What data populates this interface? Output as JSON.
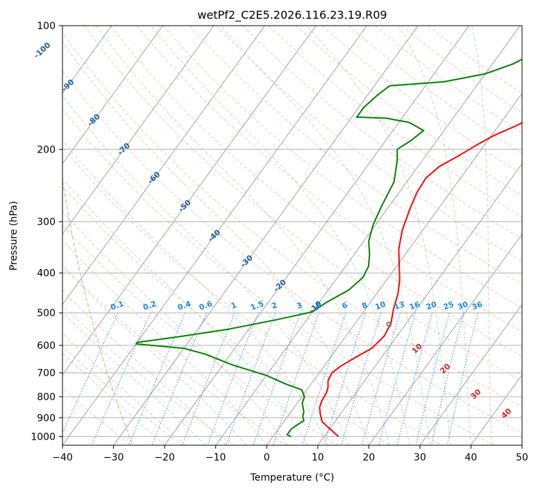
{
  "chart_data": {
    "type": "line",
    "title": "wetPf2_C2E5.2026.116.23.19.R09",
    "xlabel": "Temperature (°C)",
    "ylabel": "Pressure (hPa)",
    "xlim": [
      -40,
      50
    ],
    "ylim": [
      1050,
      100
    ],
    "y_scale": "log",
    "x_ticks": [
      -40,
      -30,
      -20,
      -10,
      0,
      10,
      20,
      30,
      40,
      50
    ],
    "x_tick_labels": [
      "−40",
      "−30",
      "−20",
      "−10",
      "0",
      "10",
      "20",
      "30",
      "40",
      "50"
    ],
    "y_ticks": [
      100,
      200,
      300,
      400,
      500,
      600,
      700,
      800,
      900,
      1000
    ],
    "y_tick_labels": [
      "100",
      "200",
      "300",
      "400",
      "500",
      "600",
      "700",
      "800",
      "900",
      "1000"
    ],
    "grid": true,
    "isotherm_labels": [
      {
        "value": -100,
        "label": "-100",
        "p": 115
      },
      {
        "value": -90,
        "label": "-90",
        "p": 140
      },
      {
        "value": -80,
        "label": "-80",
        "p": 170
      },
      {
        "value": -70,
        "label": "-70",
        "p": 200
      },
      {
        "value": -60,
        "label": "-60",
        "p": 235
      },
      {
        "value": -50,
        "label": "-50",
        "p": 275
      },
      {
        "value": -40,
        "label": "-40",
        "p": 325
      },
      {
        "value": -30,
        "label": "-30",
        "p": 375
      },
      {
        "value": -20,
        "label": "-20",
        "p": 430
      },
      {
        "value": -10,
        "label": "-10",
        "p": 485
      }
    ],
    "mixing_ratio_labels": [
      "0.1",
      "0.2",
      "0.4",
      "0.6",
      "1",
      "1.5",
      "2",
      "3",
      "4",
      "6",
      "8",
      "10",
      "13",
      "16",
      "20",
      "25",
      "30",
      "36"
    ],
    "mixing_ratio_values": [
      0.1,
      0.2,
      0.4,
      0.6,
      1,
      1.5,
      2,
      3,
      4,
      6,
      8,
      10,
      13,
      16,
      20,
      25,
      30,
      36
    ],
    "cape_labels": [
      {
        "label": "0",
        "t": 24,
        "p": 535
      },
      {
        "label": "10",
        "t": 29.5,
        "p": 612
      },
      {
        "label": "20",
        "t": 35,
        "p": 685
      },
      {
        "label": "30",
        "t": 41,
        "p": 790
      },
      {
        "label": "40",
        "t": 47,
        "p": 880
      }
    ],
    "series": [
      {
        "name": "",
        "color": "#ff0000",
        "points": [
          [
            12.8,
            1000
          ],
          [
            9.5,
            950
          ],
          [
            7.5,
            920
          ],
          [
            6,
            880
          ],
          [
            5,
            850
          ],
          [
            4.5,
            820
          ],
          [
            4.2,
            780
          ],
          [
            3.8,
            760
          ],
          [
            2.8,
            730
          ],
          [
            2.5,
            700
          ],
          [
            3.2,
            675
          ],
          [
            5,
            640
          ],
          [
            6.8,
            610
          ],
          [
            7.5,
            570
          ],
          [
            7,
            530
          ],
          [
            5.5,
            490
          ],
          [
            4.2,
            450
          ],
          [
            2.5,
            415
          ],
          [
            0.5,
            385
          ],
          [
            -2,
            350
          ],
          [
            -4,
            315
          ],
          [
            -5.5,
            280
          ],
          [
            -6.5,
            255
          ],
          [
            -6.8,
            235
          ],
          [
            -5.8,
            220
          ],
          [
            -3.5,
            207
          ],
          [
            -1.5,
            195
          ],
          [
            0.5,
            185
          ],
          [
            3.5,
            175
          ],
          [
            7,
            162
          ],
          [
            10,
            150
          ],
          [
            12,
            138
          ],
          [
            14.5,
            125
          ],
          [
            16.5,
            113
          ],
          [
            18.5,
            104
          ],
          [
            19.5,
            100
          ]
        ]
      },
      {
        "name": "",
        "color": "#008000",
        "points": [
          [
            3.5,
            1000
          ],
          [
            2.5,
            990
          ],
          [
            2.5,
            960
          ],
          [
            3,
            940
          ],
          [
            3.8,
            915
          ],
          [
            3,
            895
          ],
          [
            2.5,
            870
          ],
          [
            1,
            830
          ],
          [
            0.5,
            800
          ],
          [
            -1,
            770
          ],
          [
            -5,
            745
          ],
          [
            -10,
            710
          ],
          [
            -18,
            670
          ],
          [
            -25,
            630
          ],
          [
            -30,
            610
          ],
          [
            -40,
            595
          ],
          [
            -40,
            590
          ],
          [
            -32,
            570
          ],
          [
            -24,
            548
          ],
          [
            -16,
            520
          ],
          [
            -10,
            497
          ],
          [
            -8.5,
            470
          ],
          [
            -6,
            440
          ],
          [
            -5,
            410
          ],
          [
            -5.5,
            385
          ],
          [
            -7,
            360
          ],
          [
            -9,
            335
          ],
          [
            -10.5,
            305
          ],
          [
            -11.5,
            275
          ],
          [
            -12.5,
            240
          ],
          [
            -15,
            212
          ],
          [
            -16.5,
            200
          ],
          [
            -15,
            190
          ],
          [
            -14,
            180
          ],
          [
            -18,
            172
          ],
          [
            -23,
            168
          ],
          [
            -29,
            167
          ],
          [
            -29,
            158
          ],
          [
            -28,
            147
          ],
          [
            -27,
            140
          ],
          [
            -17,
            137
          ],
          [
            -10,
            131
          ],
          [
            -6,
            124
          ],
          [
            -3,
            116
          ],
          [
            0,
            108
          ],
          [
            2.5,
            100
          ]
        ]
      }
    ]
  }
}
